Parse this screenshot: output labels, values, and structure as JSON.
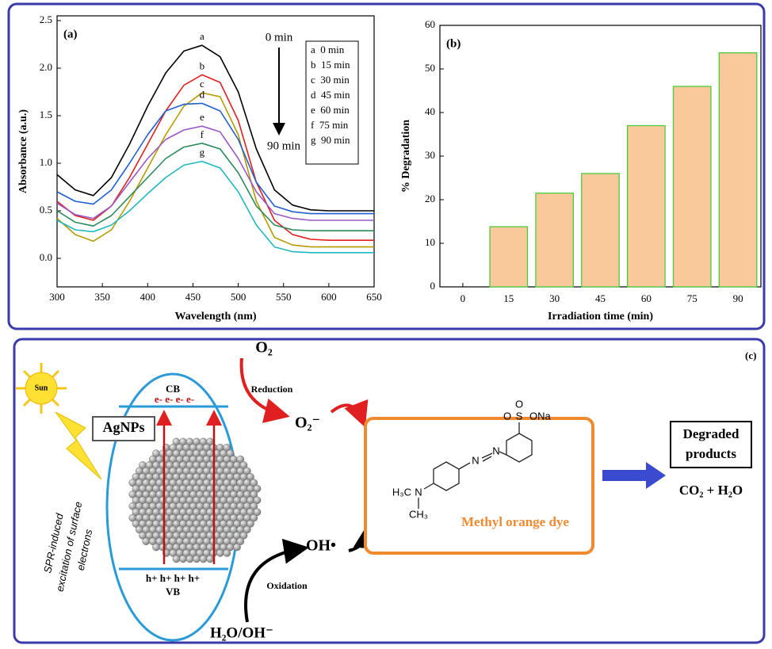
{
  "chart_data": [
    {
      "type": "line",
      "panel_label": "(a)",
      "x_label": "Wavelength (nm)",
      "y_label": "Absorbance (a.u.)",
      "x": [
        300,
        320,
        340,
        360,
        380,
        400,
        420,
        440,
        460,
        480,
        500,
        520,
        540,
        560,
        580,
        600,
        650
      ],
      "series": [
        {
          "name": "a  0 min",
          "color": "#000000",
          "values": [
            0.88,
            0.72,
            0.66,
            0.85,
            1.2,
            1.6,
            1.95,
            2.18,
            2.24,
            2.12,
            1.75,
            1.15,
            0.72,
            0.56,
            0.51,
            0.5,
            0.5
          ]
        },
        {
          "name": "b  15 min",
          "color": "#e02020",
          "values": [
            0.6,
            0.45,
            0.4,
            0.55,
            0.85,
            1.2,
            1.55,
            1.82,
            1.93,
            1.85,
            1.45,
            0.8,
            0.4,
            0.25,
            0.2,
            0.19,
            0.19
          ]
        },
        {
          "name": "c  30 min",
          "color": "#b89a00",
          "values": [
            0.42,
            0.25,
            0.18,
            0.3,
            0.6,
            0.95,
            1.3,
            1.6,
            1.74,
            1.7,
            1.3,
            0.6,
            0.22,
            0.14,
            0.12,
            0.12,
            0.12
          ]
        },
        {
          "name": "d  45 min",
          "color": "#1f5fd0",
          "values": [
            0.7,
            0.6,
            0.57,
            0.72,
            1.0,
            1.3,
            1.55,
            1.62,
            1.63,
            1.55,
            1.25,
            0.8,
            0.55,
            0.49,
            0.47,
            0.47,
            0.47
          ]
        },
        {
          "name": "e  60 min",
          "color": "#9b59c8",
          "values": [
            0.58,
            0.46,
            0.42,
            0.55,
            0.8,
            1.05,
            1.25,
            1.35,
            1.39,
            1.33,
            1.05,
            0.7,
            0.47,
            0.42,
            0.4,
            0.4,
            0.4
          ]
        },
        {
          "name": "f  75 min",
          "color": "#2a8a5a",
          "values": [
            0.5,
            0.38,
            0.34,
            0.45,
            0.65,
            0.85,
            1.05,
            1.17,
            1.21,
            1.15,
            0.9,
            0.55,
            0.35,
            0.3,
            0.29,
            0.29,
            0.29
          ]
        },
        {
          "name": "g  90 min",
          "color": "#20b8c0",
          "values": [
            0.4,
            0.3,
            0.28,
            0.35,
            0.5,
            0.68,
            0.85,
            0.98,
            1.02,
            0.95,
            0.7,
            0.35,
            0.12,
            0.07,
            0.06,
            0.06,
            0.06
          ]
        }
      ],
      "curve_labels": [
        "a",
        "b",
        "c",
        "d",
        "e",
        "f",
        "g"
      ],
      "annotations": [
        "0 min",
        "90 min"
      ],
      "xlim": [
        300,
        650
      ],
      "xticks": [
        300,
        350,
        400,
        450,
        500,
        550,
        600,
        650
      ],
      "ylim": [
        -0.3,
        2.55
      ],
      "yticks": [
        {
          "value": 0,
          "label": "0.0"
        },
        0.5,
        {
          "value": 1,
          "label": "1.0"
        },
        1.5,
        {
          "value": 2,
          "label": "2.0"
        },
        2.5
      ],
      "legend": "upper right"
    },
    {
      "type": "bar",
      "panel_label": "(b)",
      "x_label": "Irradiation time (min)",
      "y_label": "% Degradation",
      "categories": [
        "0",
        "15",
        "30",
        "45",
        "60",
        "75",
        "90"
      ],
      "values": [
        0,
        13.8,
        21.5,
        26,
        37,
        46,
        53.7
      ],
      "color": "#f9c89b",
      "edge_color": "#4ccc3c",
      "ylim": [
        0,
        60
      ],
      "yticks": [
        0,
        10,
        20,
        30,
        40,
        50,
        60
      ]
    }
  ],
  "diagram": {
    "panel_label": "(c)",
    "sun": "Sun",
    "agnps": "AgNPs",
    "cb": "CB",
    "vb": "VB",
    "electrons": "e- e- e- e-",
    "holes": "h+ h+ h+ h+",
    "spr_text": [
      "SPR-induced",
      "excitation of surface",
      "electrons"
    ],
    "o2": "O₂",
    "reduction": "Reduction",
    "superoxide": "O₂⁻",
    "hydroxyl": "OH•",
    "oxidation": "Oxidation",
    "water": "H₂O/OH⁻",
    "dye": "Methyl orange dye",
    "structure": {
      "o_top": "O",
      "s": "S",
      "o_bottom": "O",
      "ona": "ONa",
      "n_azo1": "N",
      "n_azo2": "N",
      "n_amine": "N",
      "h3c": "H₃C",
      "ch3": "CH₃"
    },
    "products": [
      "Degraded",
      "products"
    ],
    "final": "CO₂ + H₂O"
  }
}
